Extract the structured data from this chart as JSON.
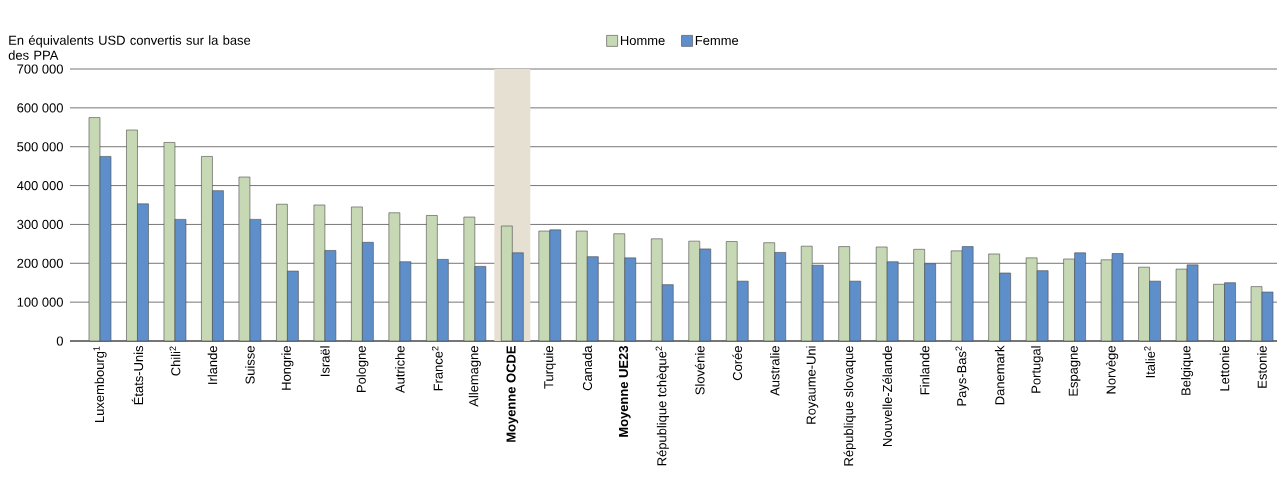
{
  "chart_data": {
    "type": "bar",
    "ylabel": "En équivalents USD convertis sur la base des PPA",
    "categories": [
      "Luxembourg$^{1}$",
      "États-Unis",
      "Chili$^{2}$",
      "Irlande",
      "Suisse",
      "Hongrie",
      "Israël",
      "Pologne",
      "Autriche",
      "France$^{2}$",
      "Allemagne",
      "**Moyenne OCDE**",
      "Turquie",
      "Canada",
      "**Moyenne UE23**",
      "République tchèque$^{2}$",
      "Slovénie",
      "Corée",
      "Australie",
      "Royaume-Uni",
      "République slovaque",
      "Nouvelle-Zélande",
      "Finlande",
      "Pays-Bas$^{2}$",
      "Danemark",
      "Portugal",
      "Espagne",
      "Norvège",
      "Italie$^{2}$",
      "Belgique",
      "Lettonie",
      "Estonie"
    ],
    "series": [
      {
        "name": "Homme",
        "color": "#c6d9b4",
        "values": [
          575000,
          543000,
          511000,
          475000,
          422000,
          352000,
          350000,
          345000,
          330000,
          323000,
          319000,
          296000,
          283000,
          283000,
          276000,
          263000,
          257000,
          256000,
          253000,
          244000,
          243000,
          242000,
          236000,
          232000,
          224000,
          214000,
          211000,
          209000,
          190000,
          185000,
          146000,
          140000
        ]
      },
      {
        "name": "Femme",
        "color": "#5f8fcb",
        "values": [
          475000,
          353000,
          313000,
          387000,
          313000,
          180000,
          233000,
          254000,
          204000,
          210000,
          192000,
          227000,
          286000,
          217000,
          214000,
          145000,
          237000,
          154000,
          228000,
          195000,
          154000,
          204000,
          199000,
          243000,
          175000,
          181000,
          227000,
          225000,
          154000,
          196000,
          150000,
          126000
        ]
      }
    ],
    "ylim": [
      0,
      700000
    ],
    "yticks": [
      {
        "value": 0,
        "label": "0"
      },
      {
        "value": 100000,
        "label": "100 000"
      },
      {
        "value": 200000,
        "label": "200 000"
      },
      {
        "value": 300000,
        "label": "300 000"
      },
      {
        "value": 400000,
        "label": "400 000"
      },
      {
        "value": 500000,
        "label": "500 000"
      },
      {
        "value": 600000,
        "label": "600 000"
      },
      {
        "value": 700000,
        "label": "700 000"
      }
    ],
    "bands": [
      {
        "axis": "x",
        "from": "**Moyenne OCDE**",
        "to": "**Moyenne OCDE**",
        "color": "#e6e0d3"
      }
    ],
    "grid": "y",
    "legend": "top"
  }
}
